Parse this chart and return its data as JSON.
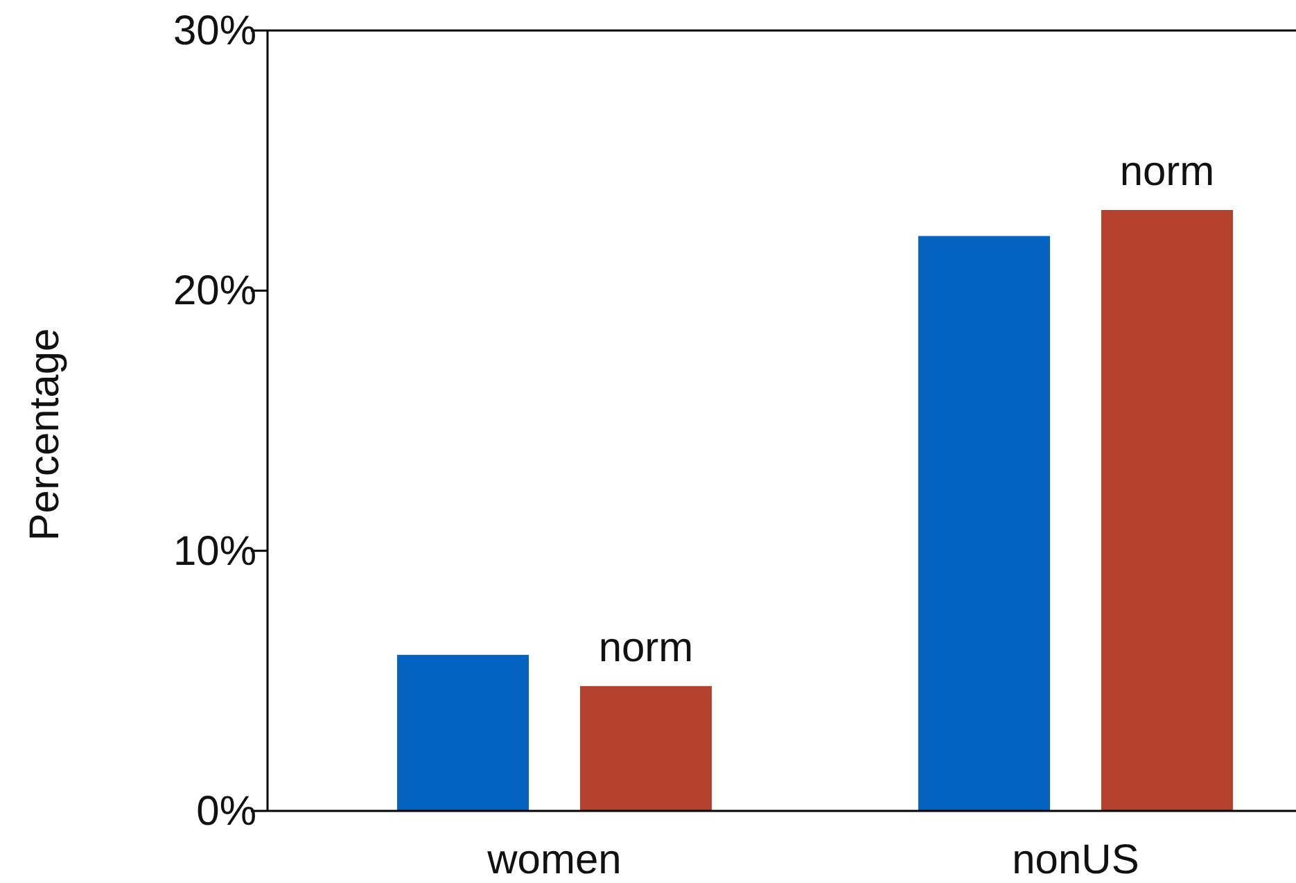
{
  "chart_data": {
    "type": "bar",
    "ylabel": "Percentage",
    "categories": [
      "women",
      "nonUS"
    ],
    "series": [
      {
        "color": "#0563c1",
        "values": [
          6.0,
          22.1
        ]
      },
      {
        "name": "norm",
        "color": "#b5412f",
        "values": [
          4.8,
          23.1
        ]
      }
    ],
    "ylim": [
      0,
      30
    ],
    "yticks": [
      {
        "value": 0,
        "label": "0%"
      },
      {
        "value": 10,
        "label": "10%"
      },
      {
        "value": 20,
        "label": "20%"
      },
      {
        "value": 30,
        "label": "30%"
      }
    ],
    "grid": false,
    "legend": false
  }
}
